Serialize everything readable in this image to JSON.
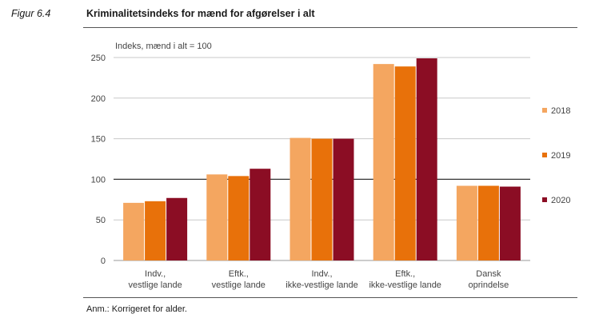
{
  "figure": {
    "label": "Figur 6.4",
    "title": "Kriminalitetsindeks for mænd for afgørelser i alt",
    "note": "Anm.: Korrigeret for alder."
  },
  "chart_data": {
    "type": "bar",
    "ylabel": "Indeks, mænd i alt = 100",
    "ylim": [
      0,
      250
    ],
    "yticks": [
      0,
      50,
      100,
      150,
      200,
      250
    ],
    "reference_line": 100,
    "grid": true,
    "legend_position": "right",
    "categories": [
      [
        "Indv.,",
        "vestlige lande"
      ],
      [
        "Eftk.,",
        "vestlige lande"
      ],
      [
        "Indv.,",
        "ikke-vestlige lande"
      ],
      [
        "Eftk.,",
        "ikke-vestlige lande"
      ],
      [
        "Dansk",
        "oprindelse"
      ]
    ],
    "series": [
      {
        "name": "2018",
        "color": "#f4a660",
        "values": [
          71,
          106,
          151,
          242,
          92
        ]
      },
      {
        "name": "2019",
        "color": "#e8710a",
        "values": [
          73,
          104,
          150,
          239,
          92
        ]
      },
      {
        "name": "2020",
        "color": "#8b0d24",
        "values": [
          77,
          113,
          150,
          249,
          91
        ]
      }
    ]
  }
}
